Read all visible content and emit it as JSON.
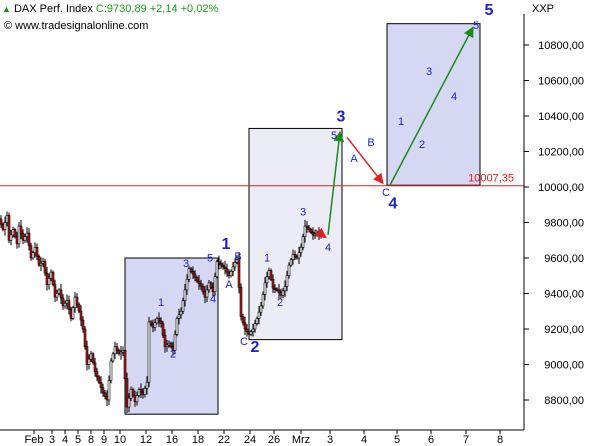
{
  "header": {
    "instrument": "DAX Perf. Index",
    "quote": "C:9730,89 +2,14 +0,02%",
    "source": "© www.tradesignalonline.com",
    "symbol": "XXP"
  },
  "chart_data": {
    "type": "candlestick",
    "title": "DAX Perf. Index",
    "xlabel": "",
    "ylabel": "",
    "ylim": [
      8680,
      11100
    ],
    "y_ticks": [
      8800,
      9000,
      9200,
      9400,
      9600,
      9800,
      10000,
      10200,
      10400,
      10600,
      10800
    ],
    "y_tick_labels": [
      "8800,00",
      "9000,00",
      "9200,00",
      "9400,00",
      "9600,00",
      "9800,00",
      "10000,00",
      "10200,00",
      "10400,00",
      "10600,00",
      "10800,00"
    ],
    "x_tick_labels": [
      "Feb",
      "3",
      "4",
      "5",
      "8",
      "9",
      "10",
      "12",
      "16",
      "18",
      "22",
      "24",
      "26",
      "Mrz",
      "3",
      "4",
      "5",
      "6",
      "7",
      "8"
    ],
    "grid": false,
    "horizontal_line": {
      "value": 10007.35,
      "label": "10007,35",
      "color": "#e02020"
    },
    "price_path": [
      [
        0,
        9820
      ],
      [
        4,
        9760
      ],
      [
        8,
        9840
      ],
      [
        10,
        9700
      ],
      [
        14,
        9760
      ],
      [
        18,
        9680
      ],
      [
        20,
        9780
      ],
      [
        24,
        9700
      ],
      [
        28,
        9740
      ],
      [
        32,
        9600
      ],
      [
        36,
        9660
      ],
      [
        40,
        9560
      ],
      [
        44,
        9580
      ],
      [
        48,
        9450
      ],
      [
        52,
        9520
      ],
      [
        56,
        9380
      ],
      [
        60,
        9420
      ],
      [
        64,
        9330
      ],
      [
        68,
        9360
      ],
      [
        72,
        9260
      ],
      [
        76,
        9380
      ],
      [
        80,
        9300
      ],
      [
        84,
        9200
      ],
      [
        88,
        9000
      ],
      [
        92,
        9060
      ],
      [
        96,
        8960
      ],
      [
        100,
        8900
      ],
      [
        104,
        8840
      ],
      [
        108,
        8800
      ],
      [
        112,
        9020
      ],
      [
        116,
        9100
      ],
      [
        120,
        9060
      ],
      [
        124,
        9080
      ],
      [
        128,
        8760
      ],
      [
        132,
        8860
      ],
      [
        136,
        8790
      ],
      [
        140,
        8860
      ],
      [
        144,
        8830
      ],
      [
        148,
        8900
      ],
      [
        150,
        9240
      ],
      [
        154,
        9210
      ],
      [
        158,
        9260
      ],
      [
        162,
        9230
      ],
      [
        166,
        9100
      ],
      [
        170,
        9120
      ],
      [
        174,
        9080
      ],
      [
        178,
        9260
      ],
      [
        182,
        9300
      ],
      [
        186,
        9420
      ],
      [
        190,
        9540
      ],
      [
        194,
        9510
      ],
      [
        198,
        9470
      ],
      [
        202,
        9440
      ],
      [
        206,
        9380
      ],
      [
        210,
        9460
      ],
      [
        214,
        9410
      ],
      [
        218,
        9580
      ],
      [
        222,
        9560
      ],
      [
        226,
        9540
      ],
      [
        230,
        9500
      ],
      [
        234,
        9550
      ],
      [
        238,
        9600
      ],
      [
        242,
        9270
      ],
      [
        246,
        9200
      ],
      [
        250,
        9170
      ],
      [
        254,
        9200
      ],
      [
        258,
        9260
      ],
      [
        262,
        9330
      ],
      [
        266,
        9460
      ],
      [
        270,
        9530
      ],
      [
        274,
        9430
      ],
      [
        278,
        9420
      ],
      [
        282,
        9390
      ],
      [
        286,
        9440
      ],
      [
        290,
        9560
      ],
      [
        294,
        9620
      ],
      [
        298,
        9600
      ],
      [
        302,
        9660
      ],
      [
        306,
        9780
      ],
      [
        310,
        9760
      ],
      [
        314,
        9730
      ],
      [
        318,
        9740
      ],
      [
        322,
        9731
      ]
    ],
    "boxes": [
      {
        "from": 125,
        "to": 218,
        "top": 9600,
        "bottom": 8720,
        "fill": "#d6d7f3"
      },
      {
        "from": 249,
        "to": 342,
        "top": 10330,
        "bottom": 9140,
        "fill": "#ececf6"
      },
      {
        "from": 387,
        "to": 480,
        "top": 10920,
        "bottom": 10010,
        "fill": "#d6d7f3"
      }
    ],
    "arrows": [
      {
        "from": [
          315,
          9760
        ],
        "to": [
          326,
          9715
        ],
        "color": "#e02020"
      },
      {
        "from": [
          328,
          9730
        ],
        "to": [
          340,
          10310
        ],
        "color": "#1a8a1a"
      },
      {
        "from": [
          347,
          10280
        ],
        "to": [
          383,
          10020
        ],
        "color": "#e02020"
      },
      {
        "from": [
          390,
          10010
        ],
        "to": [
          473,
          10900
        ],
        "color": "#1a8a1a"
      }
    ],
    "wave_labels": [
      {
        "text": "1",
        "x": 161,
        "y": 9330,
        "size": "small"
      },
      {
        "text": "2",
        "x": 173,
        "y": 9040,
        "size": "small"
      },
      {
        "text": "3",
        "x": 186,
        "y": 9550,
        "size": "small"
      },
      {
        "text": "4",
        "x": 213,
        "y": 9350,
        "size": "small"
      },
      {
        "text": "5",
        "x": 210,
        "y": 9580,
        "size": "small"
      },
      {
        "text": "1",
        "x": 226,
        "y": 9650,
        "size": "large"
      },
      {
        "text": "A",
        "x": 229,
        "y": 9430,
        "size": "small"
      },
      {
        "text": "B",
        "x": 238,
        "y": 9590,
        "size": "small"
      },
      {
        "text": "C",
        "x": 244,
        "y": 9110,
        "size": "small"
      },
      {
        "text": "2",
        "x": 255,
        "y": 9070,
        "size": "large"
      },
      {
        "text": "1",
        "x": 267,
        "y": 9580,
        "size": "small"
      },
      {
        "text": "2",
        "x": 280,
        "y": 9330,
        "size": "small"
      },
      {
        "text": "3",
        "x": 303,
        "y": 9840,
        "size": "small"
      },
      {
        "text": "4",
        "x": 328,
        "y": 9640,
        "size": "small"
      },
      {
        "text": "5",
        "x": 334,
        "y": 10270,
        "size": "small"
      },
      {
        "text": "3",
        "x": 341,
        "y": 10370,
        "size": "large"
      },
      {
        "text": "A",
        "x": 354,
        "y": 10140,
        "size": "small"
      },
      {
        "text": "B",
        "x": 371,
        "y": 10230,
        "size": "small"
      },
      {
        "text": "C",
        "x": 386,
        "y": 9950,
        "size": "small"
      },
      {
        "text": "4",
        "x": 393,
        "y": 9880,
        "size": "large"
      },
      {
        "text": "1",
        "x": 401,
        "y": 10350,
        "size": "small"
      },
      {
        "text": "2",
        "x": 422,
        "y": 10220,
        "size": "small"
      },
      {
        "text": "3",
        "x": 429,
        "y": 10630,
        "size": "small"
      },
      {
        "text": "4",
        "x": 454,
        "y": 10490,
        "size": "small"
      },
      {
        "text": "5",
        "x": 476,
        "y": 10890,
        "size": "small"
      },
      {
        "text": "5",
        "x": 489,
        "y": 10970,
        "size": "large"
      }
    ]
  }
}
